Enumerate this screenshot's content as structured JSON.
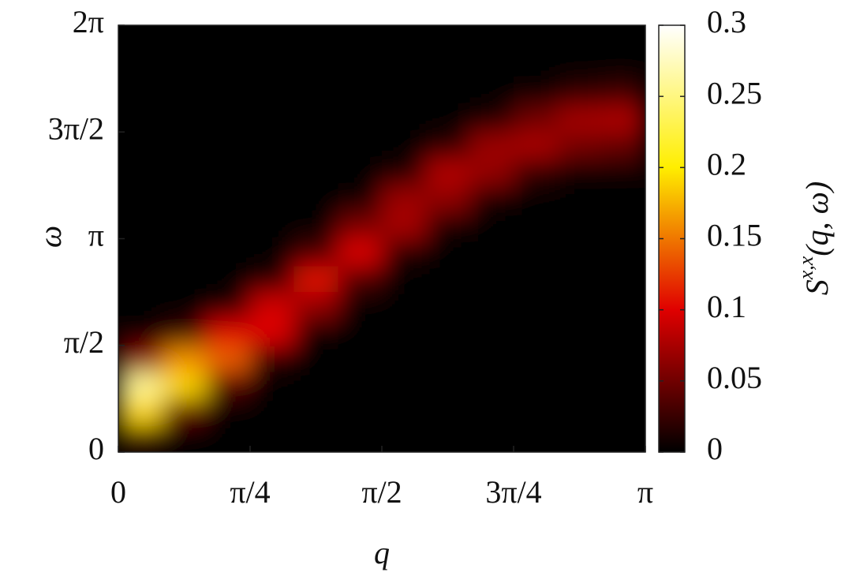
{
  "chart_data": {
    "type": "heatmap",
    "xlabel": "q",
    "ylabel": "ω",
    "colorbar_label": {
      "base": "S",
      "sup": "x,x",
      "args": "(q, ω)"
    },
    "xlim": [
      0,
      3.141592653589793
    ],
    "ylim": [
      0,
      6.283185307179586
    ],
    "xticks": [
      0,
      {
        "value": 0.7853981633974483,
        "label": "π/4"
      },
      {
        "value": 1.5707963267948966,
        "label": "π/2"
      },
      {
        "value": 2.356194490192345,
        "label": "3π/4"
      },
      {
        "value": 3.141592653589793,
        "label": "π"
      }
    ],
    "yticks": [
      0,
      {
        "value": 1.5707963267948966,
        "label": "π/2"
      },
      {
        "value": 3.141592653589793,
        "label": "π"
      },
      {
        "value": 4.71238898038469,
        "label": "3π/2"
      },
      {
        "value": 6.283185307179586,
        "label": "2π"
      }
    ],
    "clim": [
      0,
      0.3
    ],
    "cticks": [
      0,
      0.05,
      0.1,
      0.15,
      0.2,
      0.25,
      0.3
    ],
    "colormap": [
      "#000000",
      "#e00000",
      "#ffee00",
      "#ffffff"
    ],
    "z": [
      [
        0.027,
        0.002,
        0,
        0,
        0,
        0,
        0,
        0,
        0,
        0,
        0,
        0
      ],
      [
        0.19,
        0.041,
        0.002,
        0,
        0,
        0,
        0,
        0,
        0,
        0,
        0,
        0
      ],
      [
        0.26,
        0.19,
        0.035,
        0,
        0,
        0,
        0,
        0,
        0,
        0,
        0,
        0
      ],
      [
        0.062,
        0.16,
        0.14,
        0.018,
        0,
        0,
        0,
        0,
        0,
        0,
        0,
        0
      ],
      [
        0.003,
        0.024,
        0.1,
        0.1,
        0.007,
        0,
        0,
        0,
        0,
        0,
        0,
        0
      ],
      [
        0,
        0,
        0.012,
        0.094,
        0.065,
        0.002,
        0,
        0,
        0,
        0,
        0,
        0
      ],
      [
        0,
        0,
        0,
        0.016,
        0.106,
        0.032,
        0,
        0,
        0,
        0,
        0,
        0
      ],
      [
        0,
        0,
        0,
        0,
        0.031,
        0.099,
        0.015,
        0,
        0,
        0,
        0,
        0
      ],
      [
        0,
        0,
        0,
        0,
        0,
        0.053,
        0.075,
        0.009,
        0,
        0,
        0,
        0
      ],
      [
        0,
        0,
        0,
        0,
        0,
        0.005,
        0.07,
        0.064,
        0.011,
        0,
        0,
        0
      ],
      [
        0,
        0,
        0,
        0,
        0,
        0,
        0.012,
        0.081,
        0.066,
        0.02,
        0.006,
        0.004
      ],
      [
        0,
        0,
        0,
        0,
        0,
        0,
        0,
        0.018,
        0.07,
        0.076,
        0.052,
        0.044
      ],
      [
        0,
        0,
        0,
        0,
        0,
        0,
        0,
        0,
        0.013,
        0.05,
        0.074,
        0.078
      ],
      [
        0,
        0,
        0,
        0,
        0,
        0,
        0,
        0,
        0,
        0.006,
        0.02,
        0.026
      ],
      [
        0,
        0,
        0,
        0,
        0,
        0,
        0,
        0,
        0,
        0,
        0,
        0
      ],
      [
        0,
        0,
        0,
        0,
        0,
        0,
        0,
        0,
        0,
        0,
        0,
        0
      ]
    ]
  }
}
